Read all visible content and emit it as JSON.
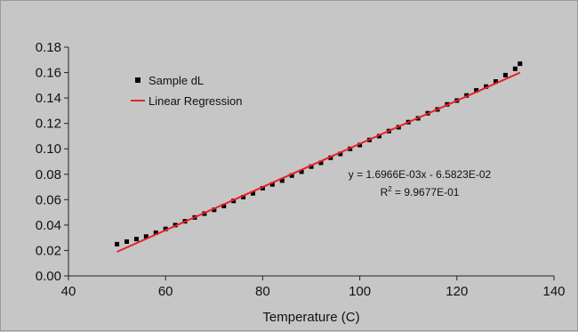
{
  "chart_data": {
    "type": "scatter",
    "title": "",
    "xlabel": "Temperature (C)",
    "ylabel": "",
    "xlim": [
      40,
      140
    ],
    "ylim": [
      0,
      0.18
    ],
    "x_ticks": [
      40,
      60,
      80,
      100,
      120,
      140
    ],
    "x_tick_labels": [
      "40",
      "60",
      "80",
      "100",
      "120",
      "140"
    ],
    "y_ticks": [
      0,
      0.02,
      0.04,
      0.06,
      0.08,
      0.1,
      0.12,
      0.14,
      0.16,
      0.18
    ],
    "y_tick_labels": [
      "0.00",
      "0.02",
      "0.04",
      "0.06",
      "0.08",
      "0.10",
      "0.12",
      "0.14",
      "0.16",
      "0.18"
    ],
    "grid": false,
    "legend_position": "top-left",
    "legend": [
      {
        "label": "Sample dL",
        "marker": "square",
        "color": "#000000"
      },
      {
        "label": "Linear Regression",
        "marker": "line",
        "color": "#e8212b"
      }
    ],
    "series": [
      {
        "name": "Sample dL",
        "type": "scatter",
        "color": "#000000",
        "x": [
          50,
          52,
          54,
          56,
          58,
          60,
          62,
          64,
          66,
          68,
          70,
          72,
          74,
          76,
          78,
          80,
          82,
          84,
          86,
          88,
          90,
          92,
          94,
          96,
          98,
          100,
          102,
          104,
          106,
          108,
          110,
          112,
          114,
          116,
          118,
          120,
          122,
          124,
          126,
          128,
          130,
          132,
          133
        ],
        "y": [
          0.025,
          0.027,
          0.029,
          0.031,
          0.034,
          0.037,
          0.04,
          0.043,
          0.046,
          0.049,
          0.052,
          0.055,
          0.059,
          0.062,
          0.065,
          0.069,
          0.072,
          0.075,
          0.079,
          0.082,
          0.086,
          0.089,
          0.093,
          0.096,
          0.1,
          0.103,
          0.107,
          0.11,
          0.114,
          0.117,
          0.121,
          0.124,
          0.128,
          0.131,
          0.135,
          0.138,
          0.142,
          0.146,
          0.149,
          0.153,
          0.158,
          0.163,
          0.167
        ]
      },
      {
        "name": "Linear Regression",
        "type": "line",
        "color": "#e8212b",
        "x": [
          50,
          133
        ],
        "y": [
          0.019,
          0.16
        ]
      }
    ],
    "annotations": [
      {
        "text": "y = 1.6966E-03x - 6.5823E-02"
      },
      {
        "text": "R",
        "superscript": "2",
        "suffix": " = 9.9677E-01"
      }
    ]
  }
}
